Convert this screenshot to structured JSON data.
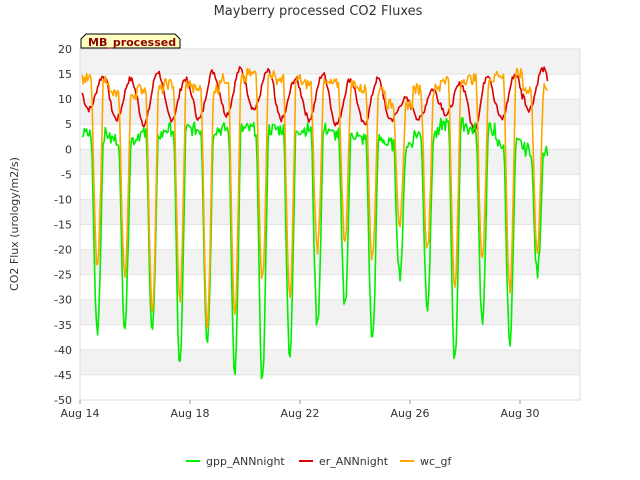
{
  "chart_data": {
    "type": "line",
    "title": "Mayberry processed CO2 Fluxes",
    "ylabel": "CO2 Flux (urology/m2/s)",
    "xlabel": "",
    "badge": "MB_processed",
    "ylim": [
      -50,
      20
    ],
    "yticks": [
      20,
      15,
      10,
      5,
      0,
      -5,
      -10,
      -15,
      -20,
      -25,
      -30,
      -35,
      -40,
      -45,
      -50
    ],
    "xlim": [
      "Aug 14",
      "Sep 1"
    ],
    "xticks": [
      "Aug 14",
      "Aug 18",
      "Aug 22",
      "Aug 26",
      "Aug 30"
    ],
    "grid": "horizontal bands",
    "legend_position": "bottom",
    "series": [
      {
        "name": "gpp_ANNnight",
        "color": "#00ee00",
        "daily_peak": [
          3,
          2,
          3,
          4,
          4,
          4,
          4,
          4,
          4,
          3,
          2,
          1,
          3,
          5,
          4,
          1,
          0
        ],
        "daily_min": [
          -36,
          -35,
          -36,
          -43,
          -38,
          -44,
          -46,
          -41,
          -35,
          -31,
          -38,
          -25,
          -31,
          -42,
          -34,
          -38,
          -25
        ]
      },
      {
        "name": "er_ANNnight",
        "color": "#dd0000",
        "daily_peak": [
          14.5,
          14,
          15.5,
          14,
          15.5,
          16,
          15.5,
          14,
          15,
          14,
          14,
          10,
          12,
          13,
          15,
          15,
          16
        ],
        "daily_min": [
          8,
          6,
          5,
          6,
          6,
          7,
          8,
          6,
          6,
          5,
          5,
          6,
          6,
          7,
          4,
          6,
          8
        ]
      },
      {
        "name": "wc_gf",
        "color": "#ffa500",
        "daily_peak": [
          14,
          11,
          12,
          13,
          12,
          14,
          15,
          14,
          13,
          13,
          12,
          9,
          12,
          14,
          14,
          15,
          12
        ],
        "daily_min": [
          -24,
          -25,
          -32,
          -30,
          -35,
          -33,
          -26,
          -30,
          -20,
          -18,
          -22,
          -15,
          -20,
          -28,
          -22,
          -28,
          -20
        ]
      }
    ]
  }
}
